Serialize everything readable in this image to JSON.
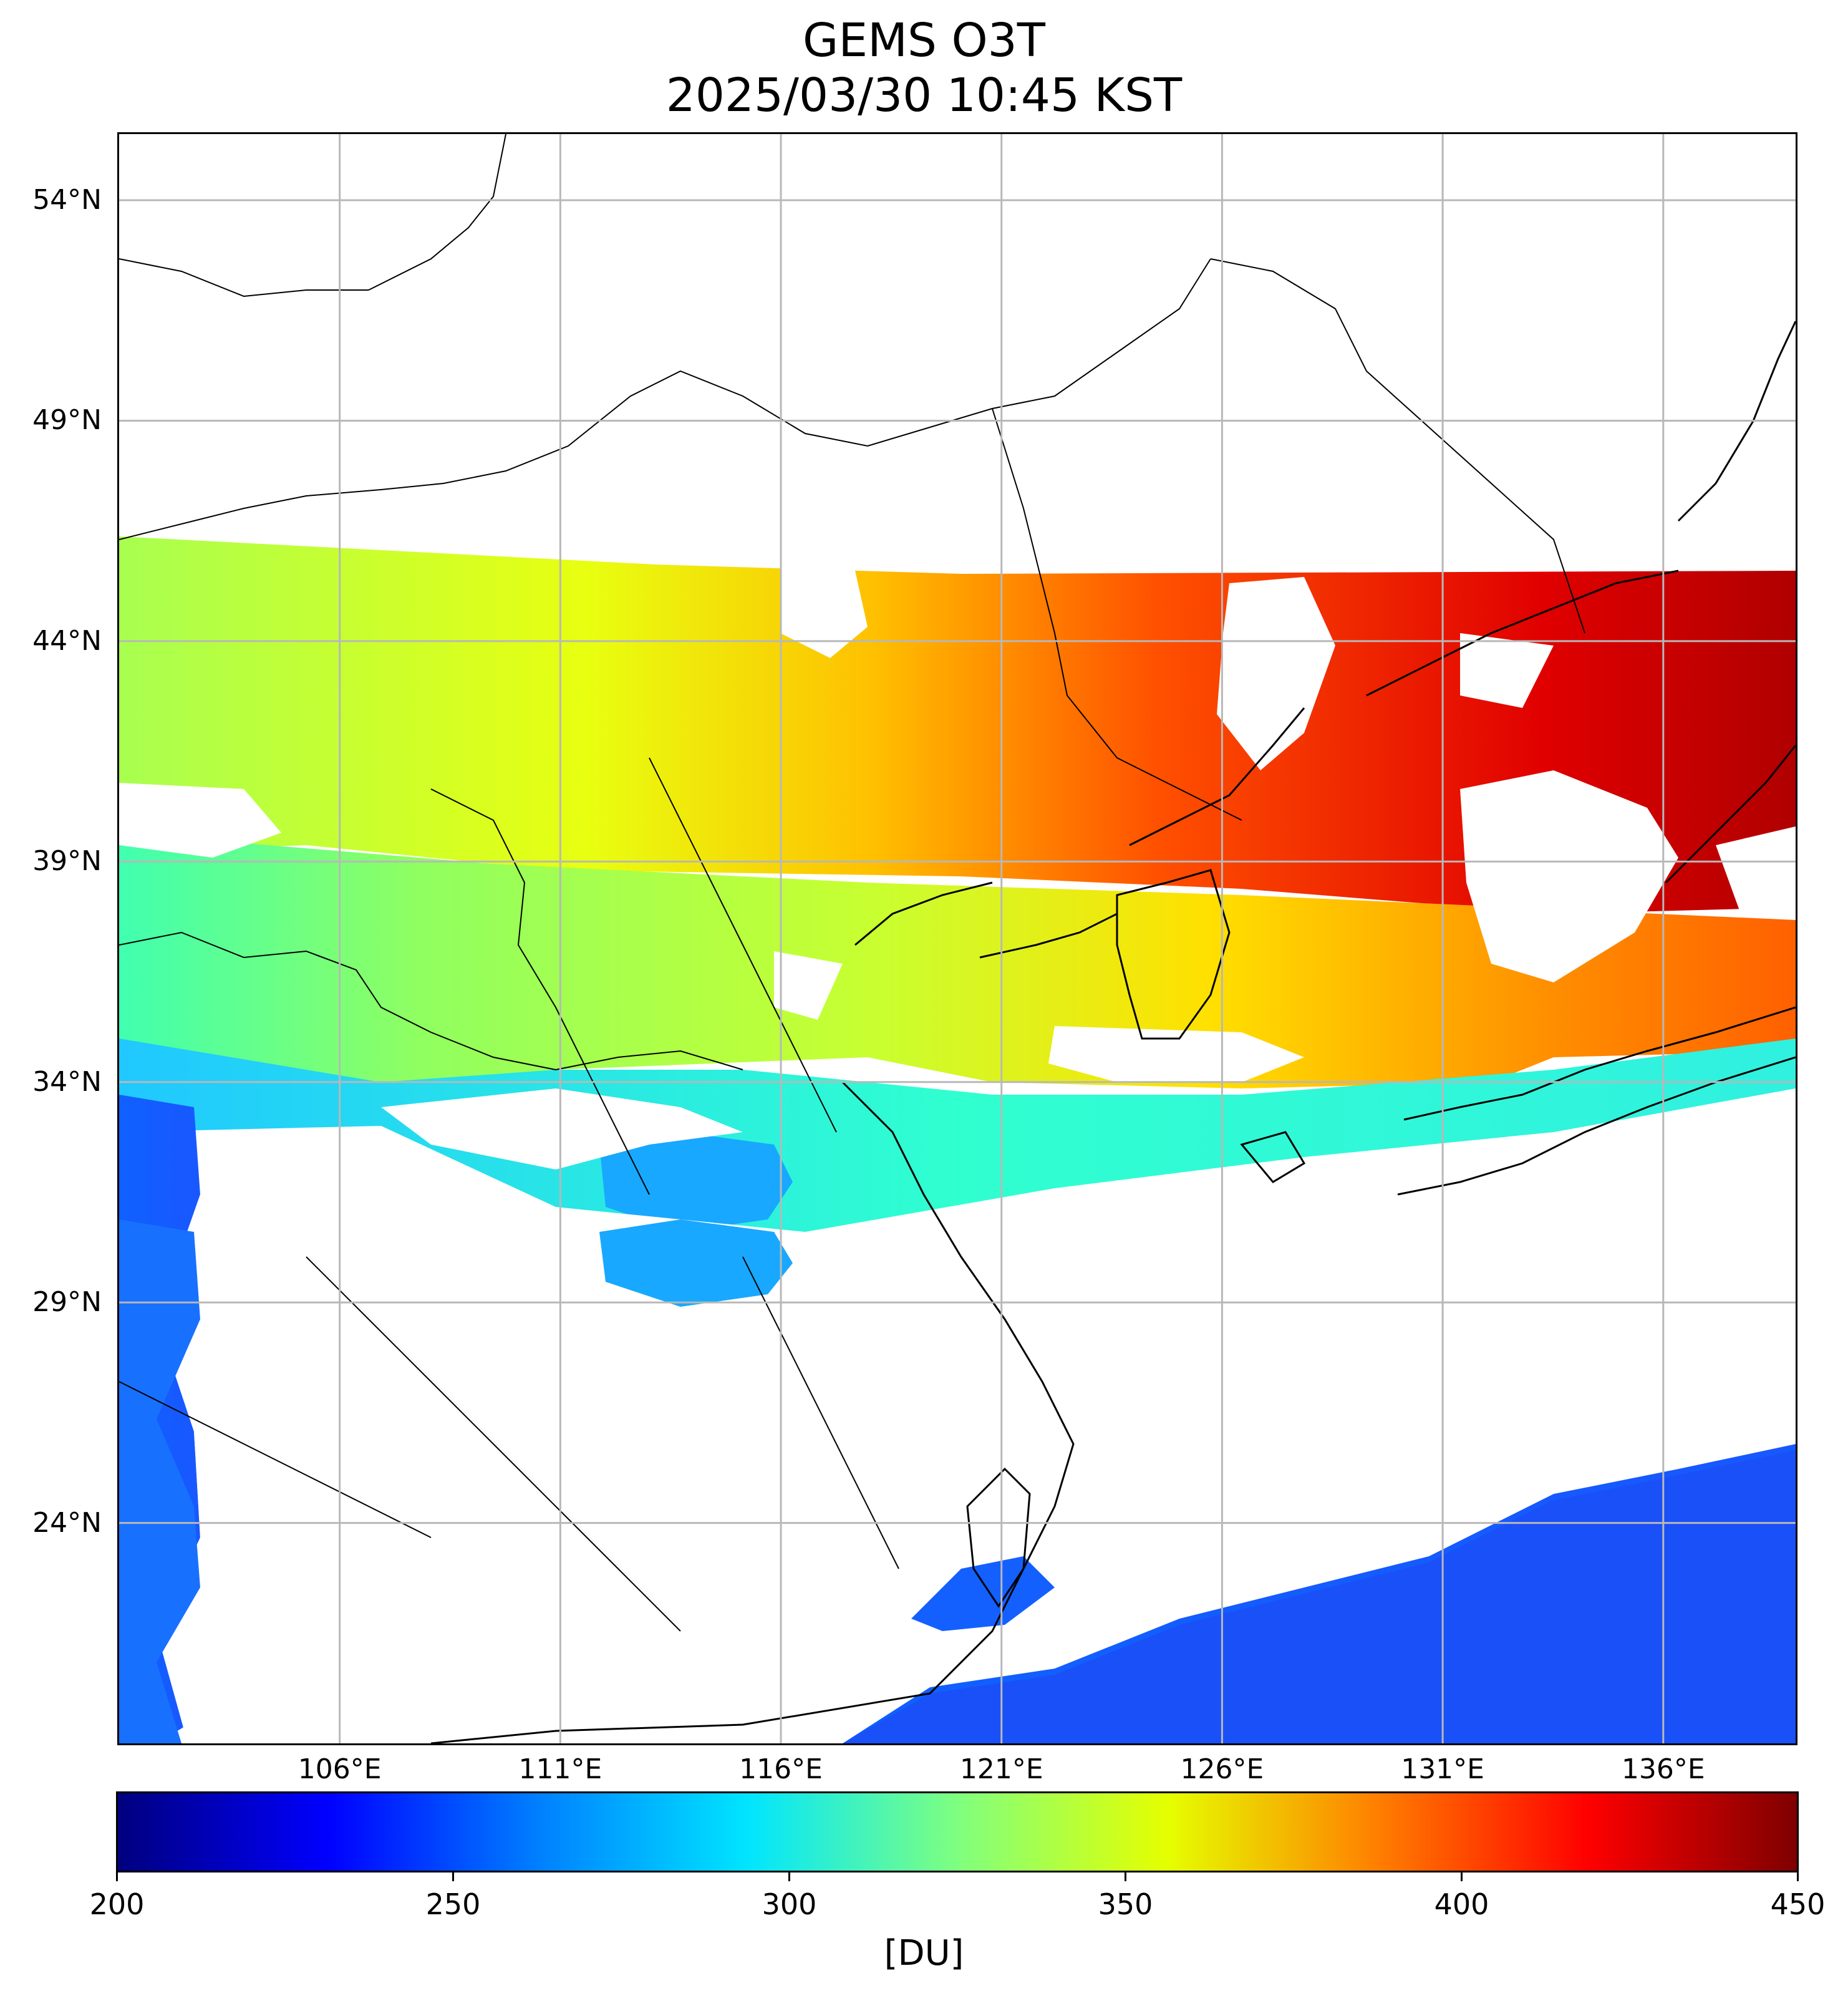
{
  "title": "GEMS O3T",
  "subtitle": "2025/03/30 10:45 KST",
  "map": {
    "lon_range": [
      101,
      139
    ],
    "lat_range": [
      19,
      55.5
    ],
    "lat_ticks": [
      {
        "value": 54,
        "label": "54°N"
      },
      {
        "value": 49,
        "label": "49°N"
      },
      {
        "value": 44,
        "label": "44°N"
      },
      {
        "value": 39,
        "label": "39°N"
      },
      {
        "value": 34,
        "label": "34°N"
      },
      {
        "value": 29,
        "label": "29°N"
      },
      {
        "value": 24,
        "label": "24°N"
      }
    ],
    "lon_ticks": [
      {
        "value": 106,
        "label": "106°E"
      },
      {
        "value": 111,
        "label": "111°E"
      },
      {
        "value": 116,
        "label": "116°E"
      },
      {
        "value": 121,
        "label": "121°E"
      },
      {
        "value": 126,
        "label": "126°E"
      },
      {
        "value": 131,
        "label": "131°E"
      },
      {
        "value": 136,
        "label": "136°E"
      }
    ],
    "grid": true
  },
  "colorbar": {
    "colormap": "jet",
    "range": [
      200,
      450
    ],
    "ticks": [
      "200",
      "250",
      "300",
      "350",
      "400",
      "450"
    ],
    "units": "[DU]"
  }
}
